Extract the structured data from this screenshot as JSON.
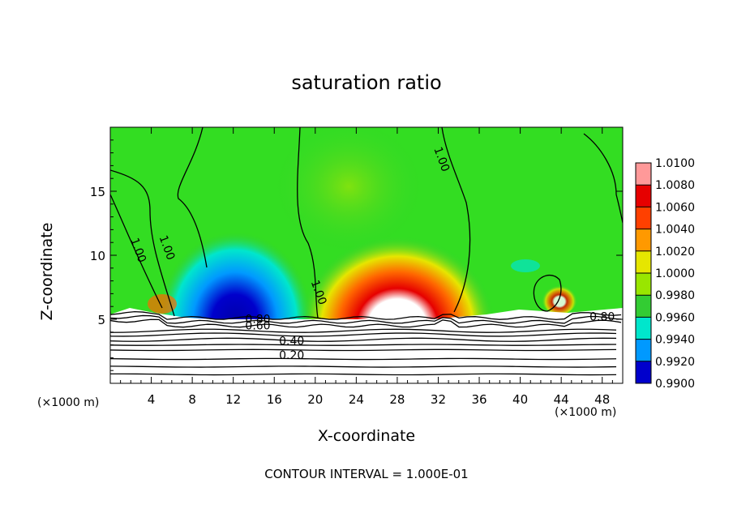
{
  "chart_data": {
    "type": "heatmap",
    "title": "saturation ratio",
    "xlabel": "X-coordinate",
    "ylabel": "Z-coordinate",
    "x_unit": "(×1000 m)",
    "xlim": [
      0,
      50
    ],
    "ylim": [
      0,
      20
    ],
    "x_ticks": [
      4,
      8,
      12,
      16,
      20,
      24,
      28,
      32,
      36,
      40,
      44,
      48
    ],
    "y_ticks": [
      5,
      10,
      15
    ],
    "footnote": "CONTOUR INTERVAL = 1.000E-01",
    "colorbar": {
      "levels": [
        "1.0100",
        "1.0080",
        "1.0060",
        "1.0040",
        "1.0020",
        "1.0000",
        "0.9980",
        "0.9960",
        "0.9940",
        "0.9920",
        "0.9900"
      ],
      "colors": [
        "#ff9999",
        "#e60000",
        "#ff4000",
        "#ff9900",
        "#e6e600",
        "#99e600",
        "#33cc33",
        "#00e6cc",
        "#0099ff",
        "#0000cc",
        "#4400aa"
      ]
    },
    "contour_labels": [
      {
        "text": "1.00",
        "x": 2.4,
        "z": 10.3
      },
      {
        "text": "1.00",
        "x": 5.2,
        "z": 10.5
      },
      {
        "text": "1.00",
        "x": 20.0,
        "z": 7.0
      },
      {
        "text": "1.00",
        "x": 32.0,
        "z": 17.4
      },
      {
        "text": "0.80",
        "x": 14.4,
        "z": 4.7
      },
      {
        "text": "0.80",
        "x": 48.0,
        "z": 4.9
      },
      {
        "text": "0.60",
        "x": 14.4,
        "z": 4.2
      },
      {
        "text": "0.40",
        "x": 17.7,
        "z": 3.0
      },
      {
        "text": "0.20",
        "x": 17.7,
        "z": 1.9
      }
    ]
  }
}
